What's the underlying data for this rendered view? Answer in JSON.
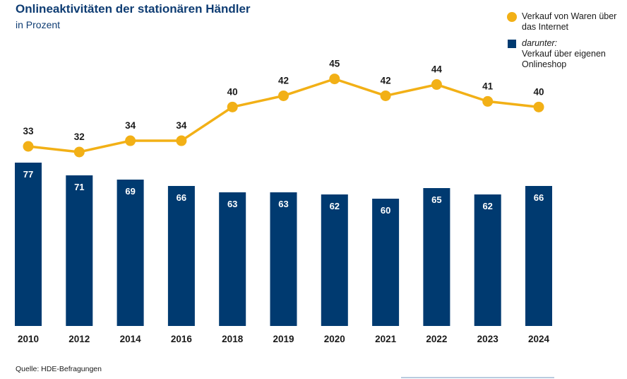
{
  "colors": {
    "bar": "#003a70",
    "line": "#f2b016",
    "title": "#0f3d73",
    "text": "#1a1a1a",
    "footer_line": "#b9cce0"
  },
  "legend": {
    "line_item": {
      "icon": "circle-icon",
      "label": "Verkauf von Waren über das Internet"
    },
    "bar_item": {
      "icon": "square-icon",
      "prefix": "darunter:",
      "label": "Verkauf über eigenen Onlineshop"
    }
  },
  "source": "Quelle: HDE-Befragungen",
  "chart_data": {
    "type": "bar",
    "title": "Onlineaktivitäten der stationären Händler",
    "subtitle": "in Prozent",
    "xlabel": "",
    "ylabel": "",
    "grid": false,
    "legend_position": "top-right",
    "categories": [
      "2010",
      "2012",
      "2014",
      "2016",
      "2018",
      "2019",
      "2020",
      "2021",
      "2022",
      "2023",
      "2024"
    ],
    "series": [
      {
        "name": "darunter: Verkauf über eigenen Onlineshop",
        "type": "bar",
        "values": [
          77,
          71,
          69,
          66,
          63,
          63,
          62,
          60,
          65,
          62,
          66
        ]
      },
      {
        "name": "Verkauf von Waren über das Internet",
        "type": "line",
        "values": [
          33,
          32,
          34,
          34,
          40,
          42,
          45,
          42,
          44,
          41,
          40
        ]
      }
    ]
  }
}
